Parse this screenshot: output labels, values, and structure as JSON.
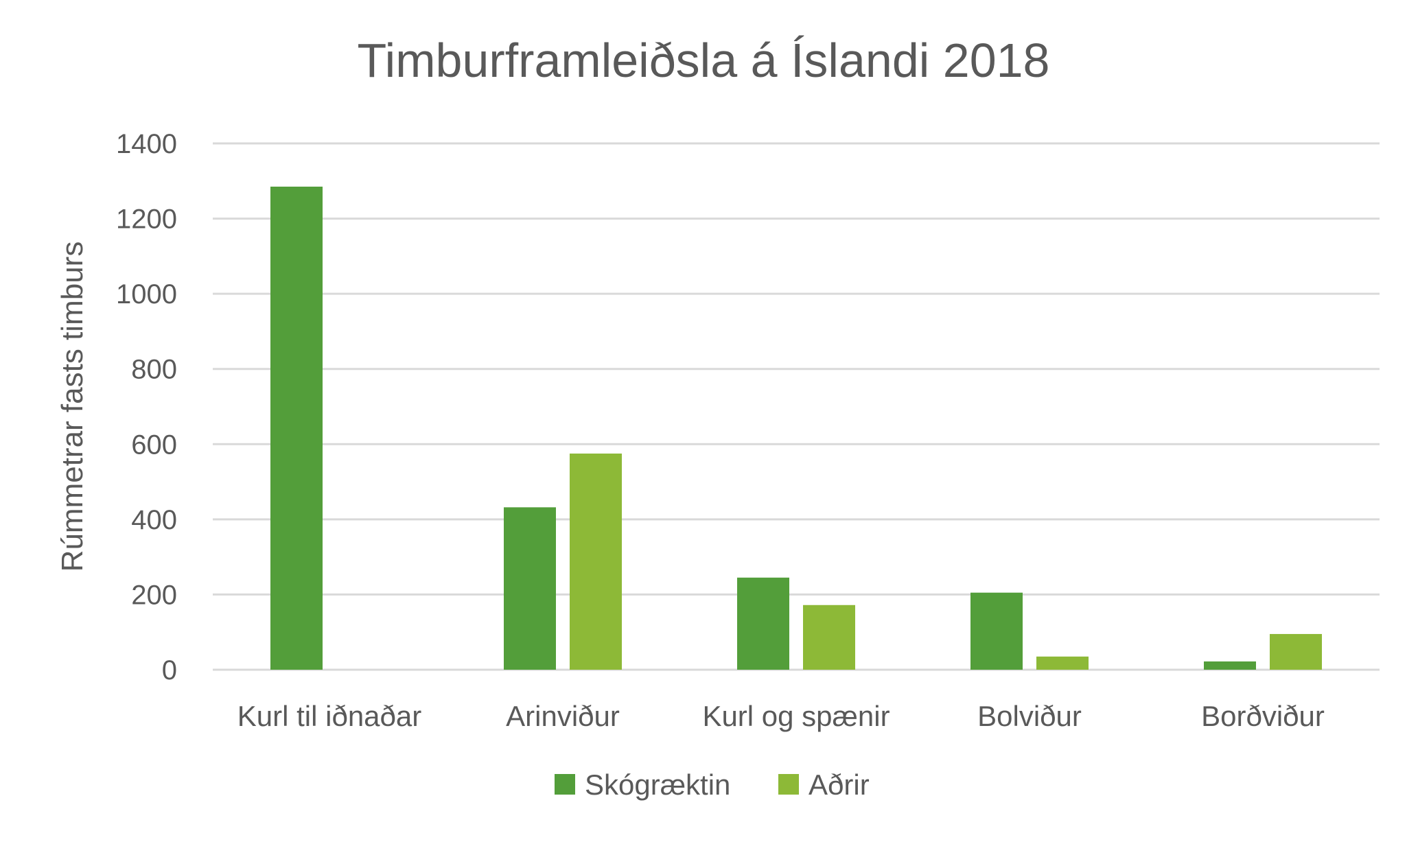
{
  "chart_data": {
    "type": "bar",
    "title": "Timburframleiðsla á Íslandi 2018",
    "xlabel": "",
    "ylabel": "Rúmmetrar fasts timburs",
    "ylim": [
      0,
      1400
    ],
    "yticks": [
      0,
      200,
      400,
      600,
      800,
      1000,
      1200,
      1400
    ],
    "grid": true,
    "legend_position": "bottom",
    "categories": [
      "Kurl til iðnaðar",
      "Arinviður",
      "Kurl og spænir",
      "Bolviður",
      "Borðviður"
    ],
    "series": [
      {
        "name": "Skógræktin",
        "color": "#539E3A",
        "values": [
          1285,
          432,
          245,
          205,
          22
        ]
      },
      {
        "name": "Aðrir",
        "color": "#8DB937",
        "values": [
          0,
          575,
          172,
          35,
          95
        ]
      }
    ]
  }
}
